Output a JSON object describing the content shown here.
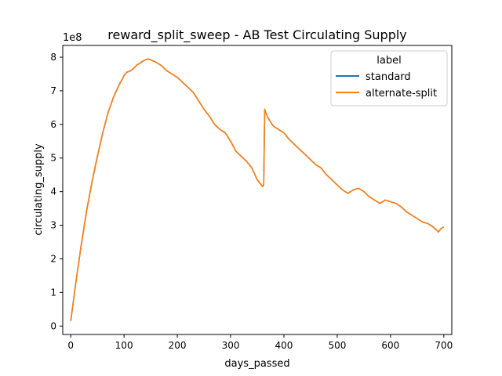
{
  "chart_data": {
    "type": "line",
    "title": "reward_split_sweep - AB Test Circulating Supply",
    "xlabel": "days_passed",
    "ylabel": "circulating_supply",
    "y_offset_label": "1e8",
    "xlim": [
      -15,
      715
    ],
    "ylim": [
      -0.25,
      8.35
    ],
    "y_scale_factor": 100000000,
    "x_ticks": [
      0,
      100,
      200,
      300,
      400,
      500,
      600,
      700
    ],
    "y_ticks": [
      0,
      1,
      2,
      3,
      4,
      5,
      6,
      7,
      8
    ],
    "legend": {
      "title": "label",
      "placement": "top-right"
    },
    "series": [
      {
        "name": "standard",
        "color": "#1f77b4",
        "x": [
          0,
          10,
          20,
          30,
          40,
          50,
          60,
          70,
          80,
          90,
          100,
          105,
          110,
          115,
          120,
          125,
          130,
          135,
          140,
          145,
          150,
          160,
          170,
          180,
          190,
          200,
          210,
          220,
          230,
          240,
          250,
          260,
          270,
          280,
          290,
          300,
          310,
          320,
          330,
          340,
          350,
          355,
          360,
          362,
          364,
          366,
          370,
          380,
          390,
          400,
          410,
          420,
          430,
          440,
          450,
          460,
          470,
          480,
          490,
          500,
          510,
          520,
          530,
          540,
          550,
          560,
          570,
          580,
          590,
          600,
          610,
          620,
          630,
          640,
          650,
          660,
          670,
          680,
          690,
          695,
          700
        ],
        "values": [
          0.15,
          1.35,
          2.45,
          3.45,
          4.3,
          5.05,
          5.75,
          6.35,
          6.8,
          7.15,
          7.45,
          7.55,
          7.58,
          7.62,
          7.7,
          7.78,
          7.82,
          7.88,
          7.92,
          7.95,
          7.92,
          7.85,
          7.75,
          7.6,
          7.5,
          7.4,
          7.25,
          7.1,
          6.95,
          6.7,
          6.45,
          6.25,
          6.0,
          5.85,
          5.75,
          5.5,
          5.2,
          5.05,
          4.9,
          4.7,
          4.35,
          4.25,
          4.15,
          4.2,
          6.45,
          6.35,
          6.2,
          5.95,
          5.85,
          5.75,
          5.55,
          5.4,
          5.25,
          5.1,
          4.95,
          4.8,
          4.7,
          4.5,
          4.35,
          4.2,
          4.05,
          3.95,
          4.05,
          4.1,
          4.0,
          3.85,
          3.75,
          3.65,
          3.75,
          3.7,
          3.65,
          3.55,
          3.4,
          3.3,
          3.2,
          3.1,
          3.05,
          2.95,
          2.8,
          2.9,
          2.95
        ]
      },
      {
        "name": "alternate-split",
        "color": "#ff7f0e",
        "x": [
          0,
          10,
          20,
          30,
          40,
          50,
          60,
          70,
          80,
          90,
          100,
          105,
          110,
          115,
          120,
          125,
          130,
          135,
          140,
          145,
          150,
          160,
          170,
          180,
          190,
          200,
          210,
          220,
          230,
          240,
          250,
          260,
          270,
          280,
          290,
          300,
          310,
          320,
          330,
          340,
          350,
          355,
          360,
          362,
          364,
          366,
          370,
          380,
          390,
          400,
          410,
          420,
          430,
          440,
          450,
          460,
          470,
          480,
          490,
          500,
          510,
          520,
          530,
          540,
          550,
          560,
          570,
          580,
          590,
          600,
          610,
          620,
          630,
          640,
          650,
          660,
          670,
          680,
          690,
          695,
          700
        ],
        "values": [
          0.15,
          1.35,
          2.45,
          3.45,
          4.3,
          5.05,
          5.75,
          6.35,
          6.8,
          7.15,
          7.45,
          7.55,
          7.58,
          7.62,
          7.7,
          7.78,
          7.82,
          7.88,
          7.92,
          7.95,
          7.92,
          7.85,
          7.75,
          7.6,
          7.5,
          7.4,
          7.25,
          7.1,
          6.95,
          6.7,
          6.45,
          6.25,
          6.0,
          5.85,
          5.75,
          5.5,
          5.2,
          5.05,
          4.9,
          4.7,
          4.35,
          4.25,
          4.15,
          4.2,
          6.45,
          6.35,
          6.2,
          5.95,
          5.85,
          5.75,
          5.55,
          5.4,
          5.25,
          5.1,
          4.95,
          4.8,
          4.7,
          4.5,
          4.35,
          4.2,
          4.05,
          3.95,
          4.05,
          4.1,
          4.0,
          3.85,
          3.75,
          3.65,
          3.75,
          3.7,
          3.65,
          3.55,
          3.4,
          3.3,
          3.2,
          3.1,
          3.05,
          2.95,
          2.8,
          2.9,
          2.95
        ]
      }
    ]
  }
}
